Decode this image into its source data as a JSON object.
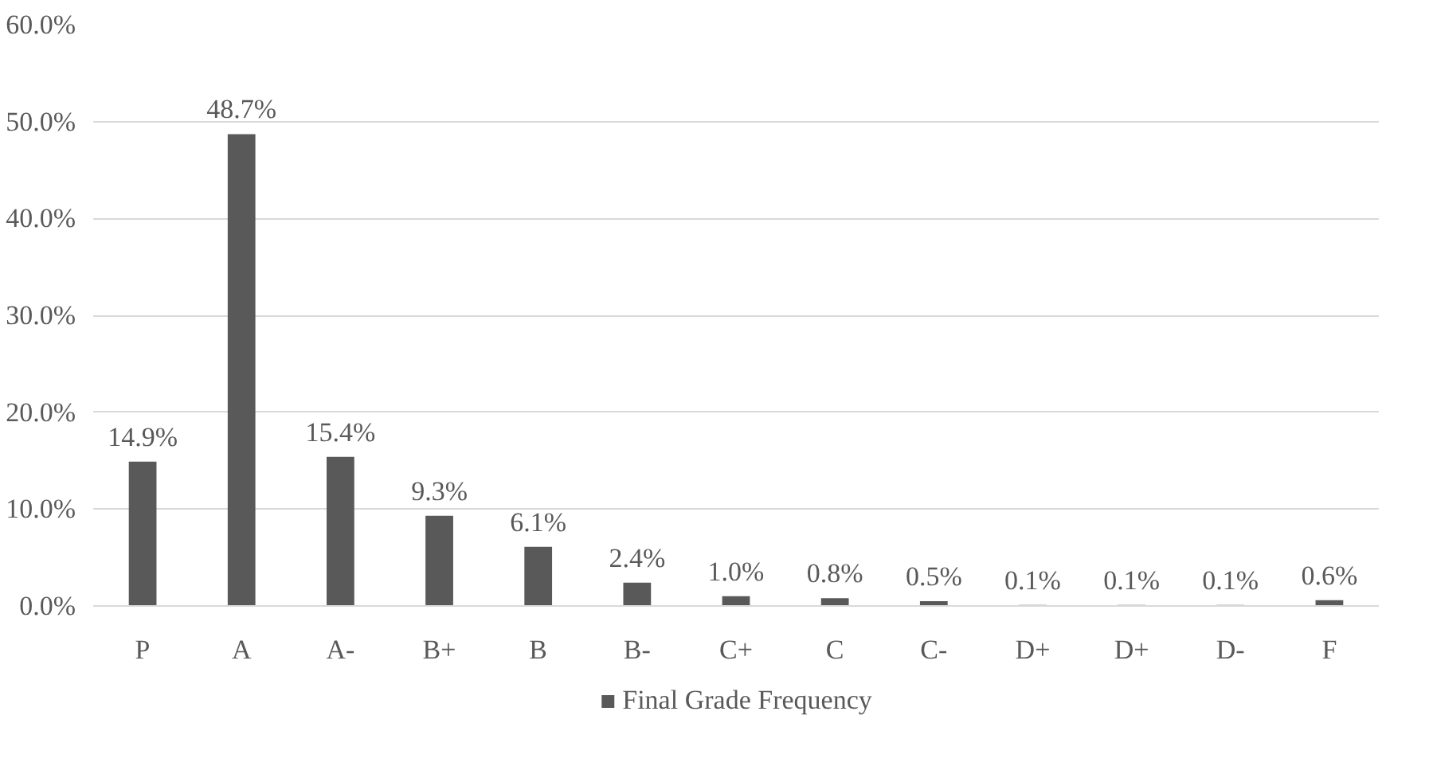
{
  "chart_data": {
    "type": "bar",
    "categories": [
      "P",
      "A",
      "A-",
      "B+",
      "B",
      "B-",
      "C+",
      "C",
      "C-",
      "D+",
      "D+",
      "D-",
      "F"
    ],
    "series": [
      {
        "name": "Final Grade Frequency",
        "color": "#595959",
        "values": [
          14.9,
          48.7,
          15.4,
          9.3,
          6.1,
          2.4,
          1.0,
          0.8,
          0.5,
          0.1,
          0.1,
          0.1,
          0.6
        ],
        "value_labels": [
          "14.9%",
          "48.7%",
          "15.4%",
          "9.3%",
          "6.1%",
          "2.4%",
          "1.0%",
          "0.8%",
          "0.5%",
          "0.1%",
          "0.1%",
          "0.1%",
          "0.6%"
        ]
      }
    ],
    "ylim": [
      0,
      60
    ],
    "yticks": [
      {
        "value": 0,
        "label": "0.0%"
      },
      {
        "value": 10,
        "label": "10.0%"
      },
      {
        "value": 20,
        "label": "20.0%"
      },
      {
        "value": 30,
        "label": "30.0%"
      },
      {
        "value": 40,
        "label": "40.0%"
      },
      {
        "value": 50,
        "label": "50.0%"
      },
      {
        "value": 60,
        "label": "60.0%"
      }
    ],
    "grid": "y",
    "legend": "bottom"
  }
}
